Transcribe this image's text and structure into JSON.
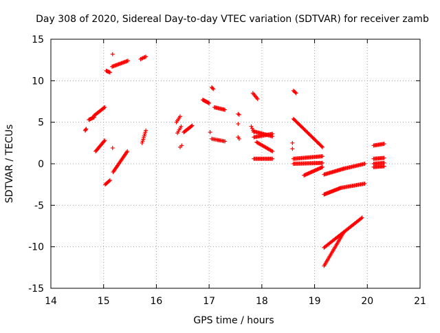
{
  "chart_data": {
    "type": "scatter",
    "title": "Day 308 of 2020, Sidereal Day-to-day VTEC variation (SDTVAR) for receiver zamb",
    "xlabel": "GPS time / hours",
    "ylabel": "SDTVAR / TECUs",
    "xlim": [
      14,
      21
    ],
    "ylim": [
      -15,
      15
    ],
    "x_ticks": [
      14,
      15,
      16,
      17,
      18,
      19,
      20,
      21
    ],
    "y_ticks": [
      -15,
      -10,
      -5,
      0,
      5,
      10,
      15
    ],
    "x_tick_labels": [
      "14",
      "15",
      "16",
      "17",
      "18",
      "19",
      "20",
      "21"
    ],
    "y_tick_labels": [
      "-15",
      "-10",
      "-5",
      "0",
      "5",
      "10",
      "15"
    ],
    "grid": true,
    "marker": "+",
    "marker_color": "#ff0000",
    "axis_color": "#000000",
    "grid_color": "#a0a0a0",
    "segments": [
      {
        "x0": 14.65,
        "y0": 4.0,
        "x1": 14.67,
        "y1": 4.2,
        "n": 3
      },
      {
        "x0": 14.72,
        "y0": 5.3,
        "x1": 14.82,
        "y1": 5.6,
        "n": 8
      },
      {
        "x0": 14.82,
        "y0": 5.8,
        "x1": 15.02,
        "y1": 6.8,
        "n": 14
      },
      {
        "x0": 15.05,
        "y0": 11.2,
        "x1": 15.12,
        "y1": 11.0,
        "n": 6
      },
      {
        "x0": 15.16,
        "y0": 11.7,
        "x1": 15.46,
        "y1": 12.4,
        "n": 18
      },
      {
        "x0": 15.7,
        "y0": 12.6,
        "x1": 15.8,
        "y1": 12.9,
        "n": 6
      },
      {
        "x0": 15.17,
        "y0": 13.2,
        "x1": 15.17,
        "y1": 13.2,
        "n": 1
      },
      {
        "x0": 14.85,
        "y0": 1.5,
        "x1": 15.02,
        "y1": 2.8,
        "n": 14
      },
      {
        "x0": 15.18,
        "y0": -1.0,
        "x1": 15.45,
        "y1": 1.5,
        "n": 20
      },
      {
        "x0": 15.17,
        "y0": 1.9,
        "x1": 15.17,
        "y1": 1.9,
        "n": 1
      },
      {
        "x0": 15.03,
        "y0": -2.5,
        "x1": 15.12,
        "y1": -2.0,
        "n": 7
      },
      {
        "x0": 15.73,
        "y0": 2.5,
        "x1": 15.8,
        "y1": 4.0,
        "n": 8
      },
      {
        "x0": 16.38,
        "y0": 5.0,
        "x1": 16.45,
        "y1": 5.7,
        "n": 5
      },
      {
        "x0": 16.4,
        "y0": 3.7,
        "x1": 16.47,
        "y1": 4.5,
        "n": 5
      },
      {
        "x0": 16.45,
        "y0": 2.0,
        "x1": 16.48,
        "y1": 2.2,
        "n": 2
      },
      {
        "x0": 16.52,
        "y0": 3.8,
        "x1": 16.68,
        "y1": 4.6,
        "n": 12
      },
      {
        "x0": 16.88,
        "y0": 7.7,
        "x1": 17.0,
        "y1": 7.3,
        "n": 10
      },
      {
        "x0": 17.05,
        "y0": 9.2,
        "x1": 17.08,
        "y1": 9.0,
        "n": 3
      },
      {
        "x0": 17.1,
        "y0": 6.8,
        "x1": 17.3,
        "y1": 6.5,
        "n": 12
      },
      {
        "x0": 17.02,
        "y0": 3.8,
        "x1": 17.02,
        "y1": 3.8,
        "n": 1
      },
      {
        "x0": 17.05,
        "y0": 3.0,
        "x1": 17.3,
        "y1": 2.7,
        "n": 12
      },
      {
        "x0": 17.55,
        "y0": 6.0,
        "x1": 17.57,
        "y1": 5.9,
        "n": 2
      },
      {
        "x0": 17.55,
        "y0": 4.8,
        "x1": 17.55,
        "y1": 4.8,
        "n": 1
      },
      {
        "x0": 17.55,
        "y0": 3.2,
        "x1": 17.57,
        "y1": 3.0,
        "n": 2
      },
      {
        "x0": 17.83,
        "y0": 8.5,
        "x1": 17.92,
        "y1": 7.8,
        "n": 6
      },
      {
        "x0": 17.8,
        "y0": 4.5,
        "x1": 17.85,
        "y1": 3.8,
        "n": 4
      },
      {
        "x0": 17.85,
        "y0": 3.9,
        "x1": 18.2,
        "y1": 3.3,
        "n": 20
      },
      {
        "x0": 17.85,
        "y0": 3.2,
        "x1": 18.2,
        "y1": 3.6,
        "n": 20
      },
      {
        "x0": 17.9,
        "y0": 2.6,
        "x1": 18.2,
        "y1": 1.5,
        "n": 18
      },
      {
        "x0": 17.85,
        "y0": 0.6,
        "x1": 18.2,
        "y1": 0.6,
        "n": 20
      },
      {
        "x0": 18.6,
        "y0": 8.8,
        "x1": 18.65,
        "y1": 8.5,
        "n": 4
      },
      {
        "x0": 18.6,
        "y0": 5.4,
        "x1": 19.15,
        "y1": 2.0,
        "n": 36
      },
      {
        "x0": 18.58,
        "y0": 2.5,
        "x1": 18.58,
        "y1": 2.5,
        "n": 1
      },
      {
        "x0": 18.58,
        "y0": 1.8,
        "x1": 18.58,
        "y1": 1.8,
        "n": 1
      },
      {
        "x0": 18.6,
        "y0": 0.6,
        "x1": 19.15,
        "y1": 0.9,
        "n": 30
      },
      {
        "x0": 18.6,
        "y0": 0.0,
        "x1": 19.15,
        "y1": 0.1,
        "n": 30
      },
      {
        "x0": 18.8,
        "y0": -1.4,
        "x1": 19.15,
        "y1": -0.4,
        "n": 22
      },
      {
        "x0": 19.18,
        "y0": -1.3,
        "x1": 19.55,
        "y1": -0.6,
        "n": 22
      },
      {
        "x0": 19.55,
        "y0": -0.6,
        "x1": 19.95,
        "y1": 0.0,
        "n": 22
      },
      {
        "x0": 19.18,
        "y0": -3.7,
        "x1": 19.5,
        "y1": -2.9,
        "n": 22
      },
      {
        "x0": 19.5,
        "y0": -2.9,
        "x1": 19.95,
        "y1": -2.4,
        "n": 24
      },
      {
        "x0": 19.18,
        "y0": -10.1,
        "x1": 19.9,
        "y1": -6.5,
        "n": 42
      },
      {
        "x0": 19.18,
        "y0": -12.3,
        "x1": 19.55,
        "y1": -8.3,
        "n": 26
      },
      {
        "x0": 20.12,
        "y0": 2.2,
        "x1": 20.32,
        "y1": 2.4,
        "n": 12
      },
      {
        "x0": 20.12,
        "y0": 0.6,
        "x1": 20.32,
        "y1": 0.7,
        "n": 12
      },
      {
        "x0": 20.12,
        "y0": 0.0,
        "x1": 20.32,
        "y1": 0.1,
        "n": 12
      },
      {
        "x0": 20.12,
        "y0": -0.4,
        "x1": 20.32,
        "y1": -0.3,
        "n": 12
      }
    ]
  }
}
